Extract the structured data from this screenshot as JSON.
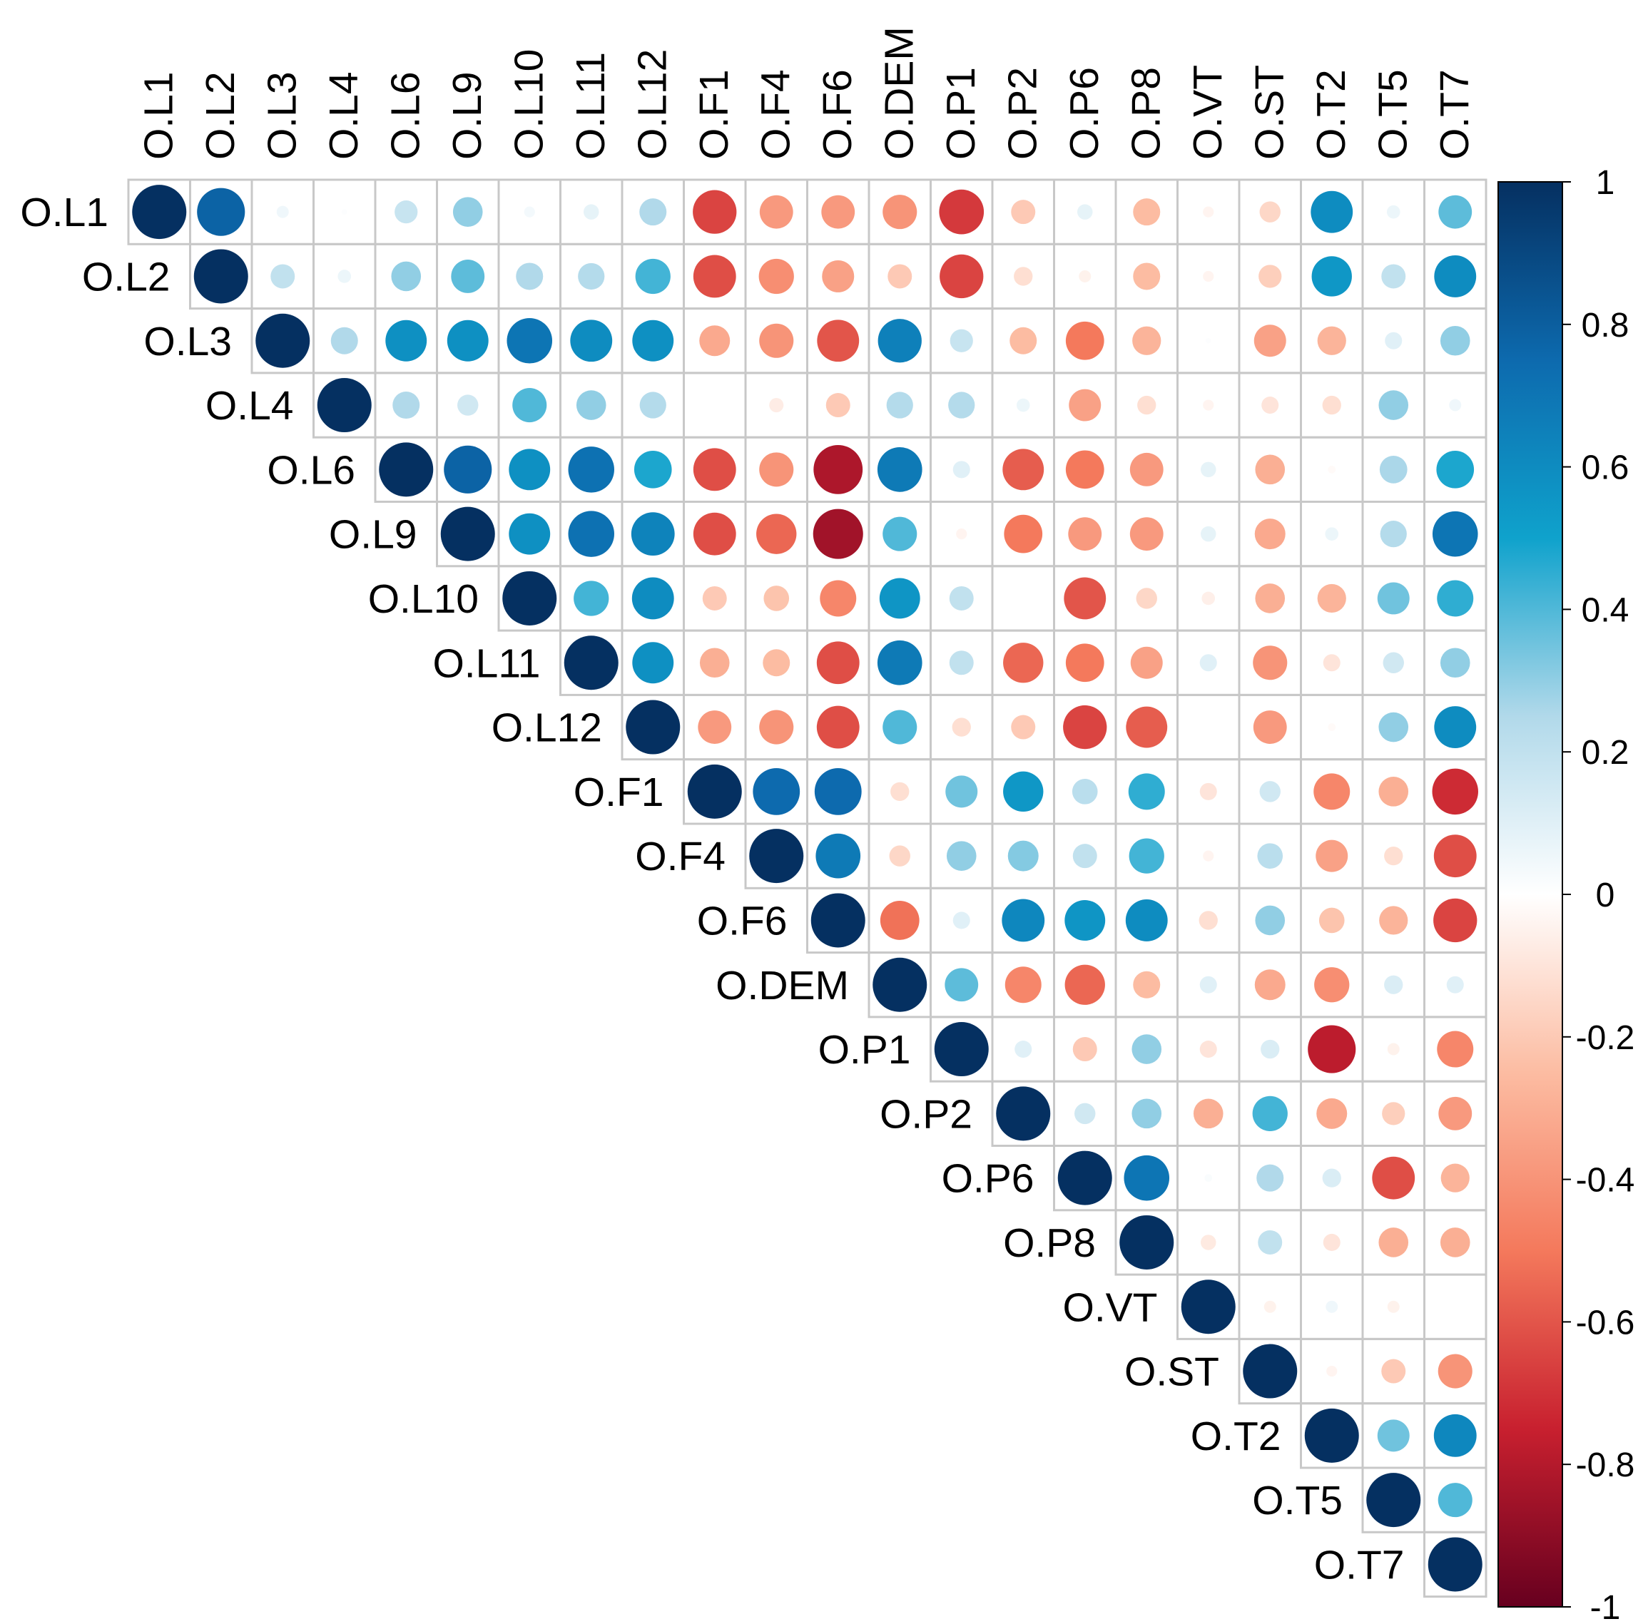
{
  "chart_data": {
    "type": "heatmap",
    "subtype": "correlation-circle-upper-triangle",
    "variables": [
      "O.L1",
      "O.L2",
      "O.L3",
      "O.L4",
      "O.L6",
      "O.L9",
      "O.L10",
      "O.L11",
      "O.L12",
      "O.F1",
      "O.F4",
      "O.F6",
      "O.DEM",
      "O.P1",
      "O.P2",
      "O.P6",
      "O.P8",
      "O.VT",
      "O.ST",
      "O.T2",
      "O.T5",
      "O.T7"
    ],
    "matrix": [
      [
        1,
        0.78,
        0.05,
        0.01,
        0.18,
        0.3,
        0.04,
        0.08,
        0.25,
        -0.65,
        -0.38,
        -0.38,
        -0.4,
        -0.68,
        -0.2,
        0.08,
        -0.25,
        -0.04,
        -0.15,
        0.6,
        0.06,
        0.38
      ],
      [
        0.78,
        1,
        0.2,
        0.06,
        0.3,
        0.38,
        0.25,
        0.24,
        0.42,
        -0.62,
        -0.42,
        -0.35,
        -0.2,
        -0.65,
        -0.12,
        -0.05,
        -0.25,
        -0.04,
        -0.18,
        0.55,
        0.2,
        0.6
      ],
      [
        0.05,
        0.2,
        1,
        0.25,
        0.58,
        0.58,
        0.7,
        0.6,
        0.58,
        -0.32,
        -0.4,
        -0.6,
        0.65,
        0.18,
        -0.25,
        -0.5,
        -0.28,
        0.01,
        -0.35,
        -0.28,
        0.1,
        0.3
      ],
      [
        0.01,
        0.06,
        0.25,
        1,
        0.25,
        0.15,
        0.4,
        0.3,
        0.24,
        0,
        -0.07,
        -0.2,
        0.24,
        0.24,
        0.06,
        -0.35,
        -0.12,
        -0.04,
        -0.1,
        -0.12,
        0.3,
        0.05
      ],
      [
        0.18,
        0.3,
        0.58,
        0.25,
        1,
        0.78,
        0.58,
        0.72,
        0.48,
        -0.62,
        -0.4,
        -0.82,
        0.68,
        0.1,
        -0.58,
        -0.5,
        -0.38,
        0.08,
        -0.3,
        -0.02,
        0.26,
        0.48
      ],
      [
        0.3,
        0.38,
        0.58,
        0.15,
        0.78,
        1,
        0.58,
        0.72,
        0.64,
        -0.62,
        -0.55,
        -0.85,
        0.4,
        -0.04,
        -0.5,
        -0.38,
        -0.38,
        0.08,
        -0.32,
        0.06,
        0.24,
        0.7
      ],
      [
        0.04,
        0.25,
        0.7,
        0.4,
        0.58,
        0.58,
        1,
        0.42,
        0.6,
        -0.2,
        -0.22,
        -0.45,
        0.56,
        0.2,
        0,
        -0.6,
        -0.15,
        -0.06,
        -0.3,
        -0.28,
        0.35,
        0.45
      ],
      [
        0.08,
        0.24,
        0.6,
        0.3,
        0.72,
        0.72,
        0.42,
        1,
        0.58,
        -0.3,
        -0.25,
        -0.62,
        0.68,
        0.2,
        -0.55,
        -0.5,
        -0.35,
        0.1,
        -0.4,
        -0.1,
        0.15,
        0.3
      ],
      [
        0.25,
        0.42,
        0.58,
        0.24,
        0.48,
        0.64,
        0.6,
        0.58,
        1,
        -0.38,
        -0.4,
        -0.62,
        0.4,
        -0.12,
        -0.2,
        -0.65,
        -0.58,
        0,
        -0.38,
        -0.02,
        0.3,
        0.6
      ],
      [
        -0.65,
        -0.62,
        -0.32,
        0,
        -0.62,
        -0.62,
        -0.2,
        -0.3,
        -0.38,
        1,
        0.75,
        0.75,
        -0.12,
        0.35,
        0.55,
        0.22,
        0.45,
        -0.1,
        0.15,
        -0.45,
        -0.3,
        -0.72
      ],
      [
        -0.38,
        -0.42,
        -0.4,
        -0.07,
        -0.4,
        -0.55,
        -0.22,
        -0.25,
        -0.4,
        0.75,
        1,
        0.68,
        -0.15,
        0.3,
        0.32,
        0.2,
        0.42,
        -0.04,
        0.22,
        -0.35,
        -0.12,
        -0.62
      ],
      [
        -0.38,
        -0.35,
        -0.6,
        -0.2,
        -0.82,
        -0.85,
        -0.45,
        -0.62,
        -0.62,
        0.75,
        0.68,
        1,
        -0.52,
        0.1,
        0.62,
        0.56,
        0.6,
        -0.12,
        0.3,
        -0.22,
        -0.28,
        -0.65
      ],
      [
        -0.4,
        -0.2,
        0.65,
        0.24,
        0.68,
        0.4,
        0.56,
        0.68,
        0.4,
        -0.12,
        -0.15,
        -0.52,
        1,
        0.38,
        -0.45,
        -0.55,
        -0.25,
        0.1,
        -0.32,
        -0.42,
        0.12,
        0.1
      ],
      [
        -0.68,
        -0.65,
        0.18,
        0.24,
        0.1,
        -0.04,
        0.2,
        0.2,
        -0.12,
        0.35,
        0.3,
        0.1,
        0.38,
        1,
        0.1,
        -0.2,
        0.3,
        -0.1,
        0.12,
        -0.78,
        -0.05,
        -0.45
      ],
      [
        -0.2,
        -0.12,
        -0.25,
        0.06,
        -0.58,
        -0.5,
        0,
        -0.55,
        -0.2,
        0.55,
        0.32,
        0.62,
        -0.45,
        0.1,
        1,
        0.15,
        0.3,
        -0.3,
        0.42,
        -0.32,
        -0.18,
        -0.38
      ],
      [
        0.08,
        -0.05,
        -0.5,
        -0.35,
        -0.5,
        -0.38,
        -0.6,
        -0.5,
        -0.65,
        0.22,
        0.2,
        0.56,
        -0.55,
        -0.2,
        0.15,
        1,
        0.7,
        0.02,
        0.25,
        0.12,
        -0.62,
        -0.28
      ],
      [
        -0.25,
        -0.25,
        -0.28,
        -0.12,
        -0.38,
        -0.38,
        -0.15,
        -0.35,
        -0.58,
        0.45,
        0.42,
        0.6,
        -0.25,
        0.3,
        0.3,
        0.7,
        1,
        -0.08,
        0.2,
        -0.1,
        -0.3,
        -0.3
      ],
      [
        -0.04,
        -0.04,
        0.01,
        -0.04,
        0.08,
        0.08,
        -0.06,
        0.1,
        0,
        -0.1,
        -0.04,
        -0.12,
        0.1,
        -0.1,
        -0.3,
        0.02,
        -0.08,
        1,
        -0.05,
        0.05,
        -0.05,
        0
      ],
      [
        -0.15,
        -0.18,
        -0.35,
        -0.1,
        -0.3,
        -0.32,
        -0.3,
        -0.4,
        -0.38,
        0.15,
        0.22,
        0.3,
        -0.32,
        0.12,
        0.42,
        0.25,
        0.2,
        -0.05,
        1,
        -0.04,
        -0.2,
        -0.4
      ],
      [
        0.6,
        0.55,
        -0.28,
        -0.12,
        -0.02,
        0.06,
        -0.28,
        -0.1,
        -0.02,
        -0.45,
        -0.35,
        -0.22,
        -0.42,
        -0.78,
        -0.32,
        0.12,
        -0.1,
        0.05,
        -0.04,
        1,
        0.35,
        0.62
      ],
      [
        0.06,
        0.2,
        0.1,
        0.3,
        0.26,
        0.24,
        0.35,
        0.15,
        0.3,
        -0.3,
        -0.12,
        -0.28,
        0.12,
        -0.05,
        -0.18,
        -0.62,
        -0.3,
        -0.05,
        -0.2,
        0.35,
        1,
        0.4
      ],
      [
        0.38,
        0.6,
        0.3,
        0.05,
        0.48,
        0.7,
        0.45,
        0.3,
        0.6,
        -0.72,
        -0.62,
        -0.65,
        0.1,
        -0.45,
        -0.38,
        -0.28,
        -0.3,
        0,
        -0.4,
        0.62,
        0.4,
        1
      ]
    ],
    "colorbar": {
      "range": [
        -1,
        1
      ],
      "ticks": [
        "1",
        "0.8",
        "0.6",
        "0.4",
        "0.2",
        "0",
        "-0.2",
        "-0.4",
        "-0.6",
        "-0.8",
        "-1"
      ],
      "colors": [
        {
          "v": -1.0,
          "c": "#67001f"
        },
        {
          "v": -0.75,
          "c": "#c8202f"
        },
        {
          "v": -0.5,
          "c": "#f4795c"
        },
        {
          "v": -0.25,
          "c": "#fcbca2"
        },
        {
          "v": 0.0,
          "c": "#ffffff"
        },
        {
          "v": 0.25,
          "c": "#b1d9ea"
        },
        {
          "v": 0.5,
          "c": "#0fa2cc"
        },
        {
          "v": 0.75,
          "c": "#0d6aae"
        },
        {
          "v": 1.0,
          "c": "#053061"
        }
      ]
    },
    "grid_color": "#c8c8c8",
    "legend": "right"
  }
}
